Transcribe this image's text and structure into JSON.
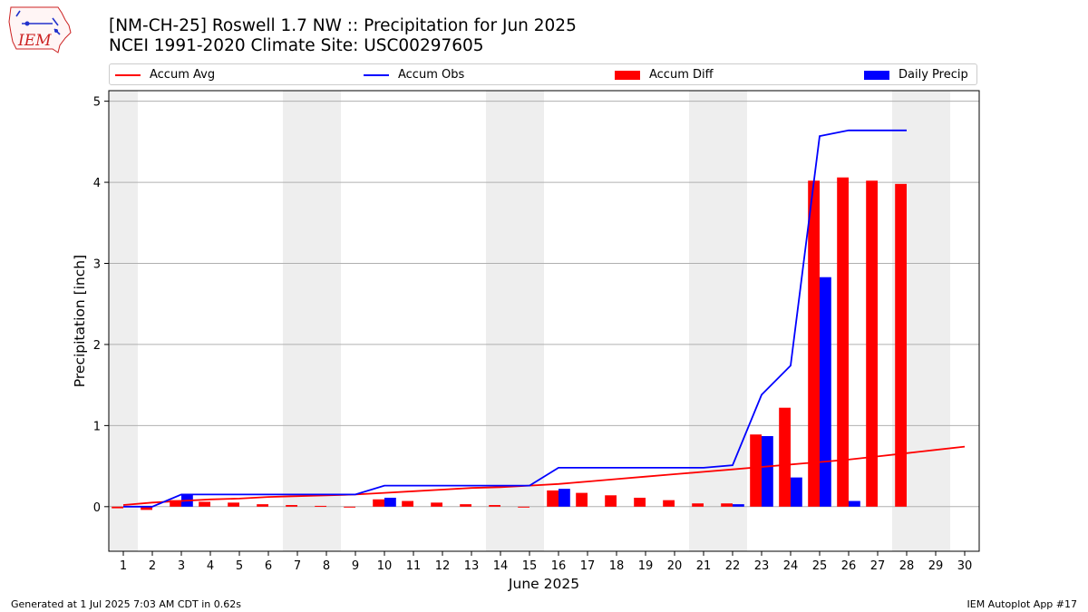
{
  "logo": {
    "text": "IEM"
  },
  "title_line1": "[NM-CH-25] Roswell 1.7 NW :: Precipitation for Jun 2025",
  "title_line2": "NCEI 1991-2020 Climate Site: USC00297605",
  "footer_left": "Generated at 1 Jul 2025 7:03 AM CDT in 0.62s",
  "footer_right": "IEM Autoplot App #17",
  "colors": {
    "avg": "#ff0000",
    "obs": "#0000ff",
    "diff": "#ff0000",
    "daily": "#0000ff",
    "weekend": "#eeeeee",
    "grid": "#b0b0b0"
  },
  "chart_data": {
    "type": "bar",
    "xlabel": "June 2025",
    "ylabel": "Precipitation [inch]",
    "ylim": [
      -0.55,
      5.13
    ],
    "yticks": [
      0,
      1,
      2,
      3,
      4,
      5
    ],
    "days": [
      1,
      2,
      3,
      4,
      5,
      6,
      7,
      8,
      9,
      10,
      11,
      12,
      13,
      14,
      15,
      16,
      17,
      18,
      19,
      20,
      21,
      22,
      23,
      24,
      25,
      26,
      27,
      28,
      29,
      30
    ],
    "weekend_days": [
      1,
      7,
      8,
      14,
      15,
      21,
      22,
      28,
      29
    ],
    "legend": [
      "Accum Avg",
      "Accum Obs",
      "Accum Diff",
      "Daily Precip"
    ],
    "grid": "horizontal",
    "series": [
      {
        "name": "Accum Avg",
        "kind": "line",
        "values": [
          0.02,
          0.05,
          0.07,
          0.09,
          0.1,
          0.12,
          0.13,
          0.14,
          0.15,
          0.17,
          0.19,
          0.21,
          0.23,
          0.24,
          0.26,
          0.28,
          0.31,
          0.34,
          0.37,
          0.4,
          0.43,
          0.46,
          0.49,
          0.52,
          0.55,
          0.58,
          0.62,
          0.66,
          0.7,
          0.74
        ]
      },
      {
        "name": "Accum Obs",
        "kind": "line",
        "values": [
          0.0,
          0.0,
          0.15,
          0.15,
          0.15,
          0.15,
          0.15,
          0.15,
          0.15,
          0.26,
          0.26,
          0.26,
          0.26,
          0.26,
          0.26,
          0.48,
          0.48,
          0.48,
          0.48,
          0.48,
          0.48,
          0.51,
          1.38,
          1.74,
          4.57,
          4.64,
          4.64,
          4.64,
          null,
          null
        ]
      },
      {
        "name": "Accum Diff",
        "kind": "bar",
        "values": [
          -0.02,
          -0.04,
          0.08,
          0.06,
          0.05,
          0.03,
          0.02,
          0.01,
          -0.01,
          0.09,
          0.07,
          0.05,
          0.03,
          0.02,
          -0.01,
          0.2,
          0.17,
          0.14,
          0.11,
          0.08,
          0.04,
          0.04,
          0.89,
          1.22,
          4.02,
          4.06,
          4.02,
          3.98,
          null,
          null
        ]
      },
      {
        "name": "Daily Precip",
        "kind": "bar",
        "values": [
          0.0,
          0.0,
          0.15,
          0.0,
          0.0,
          0.0,
          0.0,
          0.0,
          0.0,
          0.11,
          0.0,
          0.0,
          0.0,
          0.0,
          0.0,
          0.22,
          0.0,
          0.0,
          0.0,
          0.0,
          0.0,
          0.03,
          0.87,
          0.36,
          2.83,
          0.07,
          0.0,
          0.0,
          null,
          null
        ]
      }
    ]
  }
}
